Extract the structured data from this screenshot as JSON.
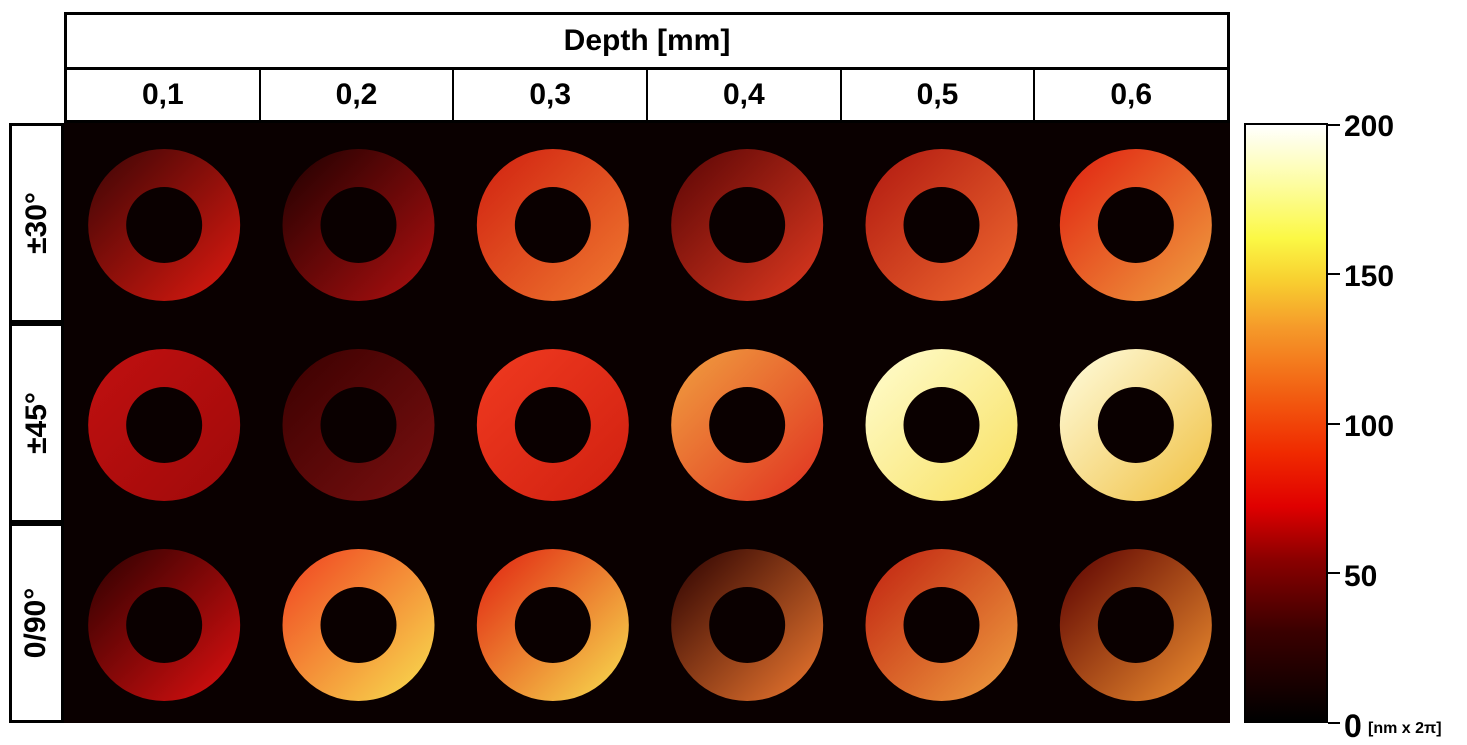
{
  "header": {
    "title": "Depth [mm]"
  },
  "columns": [
    "0,1",
    "0,2",
    "0,3",
    "0,4",
    "0,5",
    "0,6"
  ],
  "rows": [
    "±30°",
    "±45°",
    "0/90°"
  ],
  "colorbar": {
    "ticks": [
      "0",
      "50",
      "100",
      "150",
      "200"
    ],
    "unit": "[nm x 2π]",
    "min": 0,
    "max": 200
  },
  "rings": [
    [
      {
        "inner": "#3a0505",
        "outer": "#e01a10"
      },
      {
        "inner": "#1e0000",
        "outer": "#b01010"
      },
      {
        "inner": "#d02010",
        "outer": "#f07a30"
      },
      {
        "inner": "#5a0505",
        "outer": "#e03a20"
      },
      {
        "inner": "#b01810",
        "outer": "#f06a30"
      },
      {
        "inner": "#e02010",
        "outer": "#f0a040"
      }
    ],
    [
      {
        "inner": "#c01010",
        "outer": "#a00a0a"
      },
      {
        "inner": "#3a0000",
        "outer": "#7a1010"
      },
      {
        "inner": "#f03a20",
        "outer": "#d02010"
      },
      {
        "inner": "#f0a040",
        "outer": "#e03020"
      },
      {
        "inner": "#fffdd0",
        "outer": "#f8e060"
      },
      {
        "inner": "#fffde0",
        "outer": "#f0c040"
      }
    ],
    [
      {
        "inner": "#2a0000",
        "outer": "#e01010"
      },
      {
        "inner": "#f04020",
        "outer": "#f8e050"
      },
      {
        "inner": "#e02010",
        "outer": "#f8e050"
      },
      {
        "inner": "#2a0000",
        "outer": "#f07a30"
      },
      {
        "inner": "#c02010",
        "outer": "#f0a040"
      },
      {
        "inner": "#5a0000",
        "outer": "#f09030"
      }
    ]
  ]
}
